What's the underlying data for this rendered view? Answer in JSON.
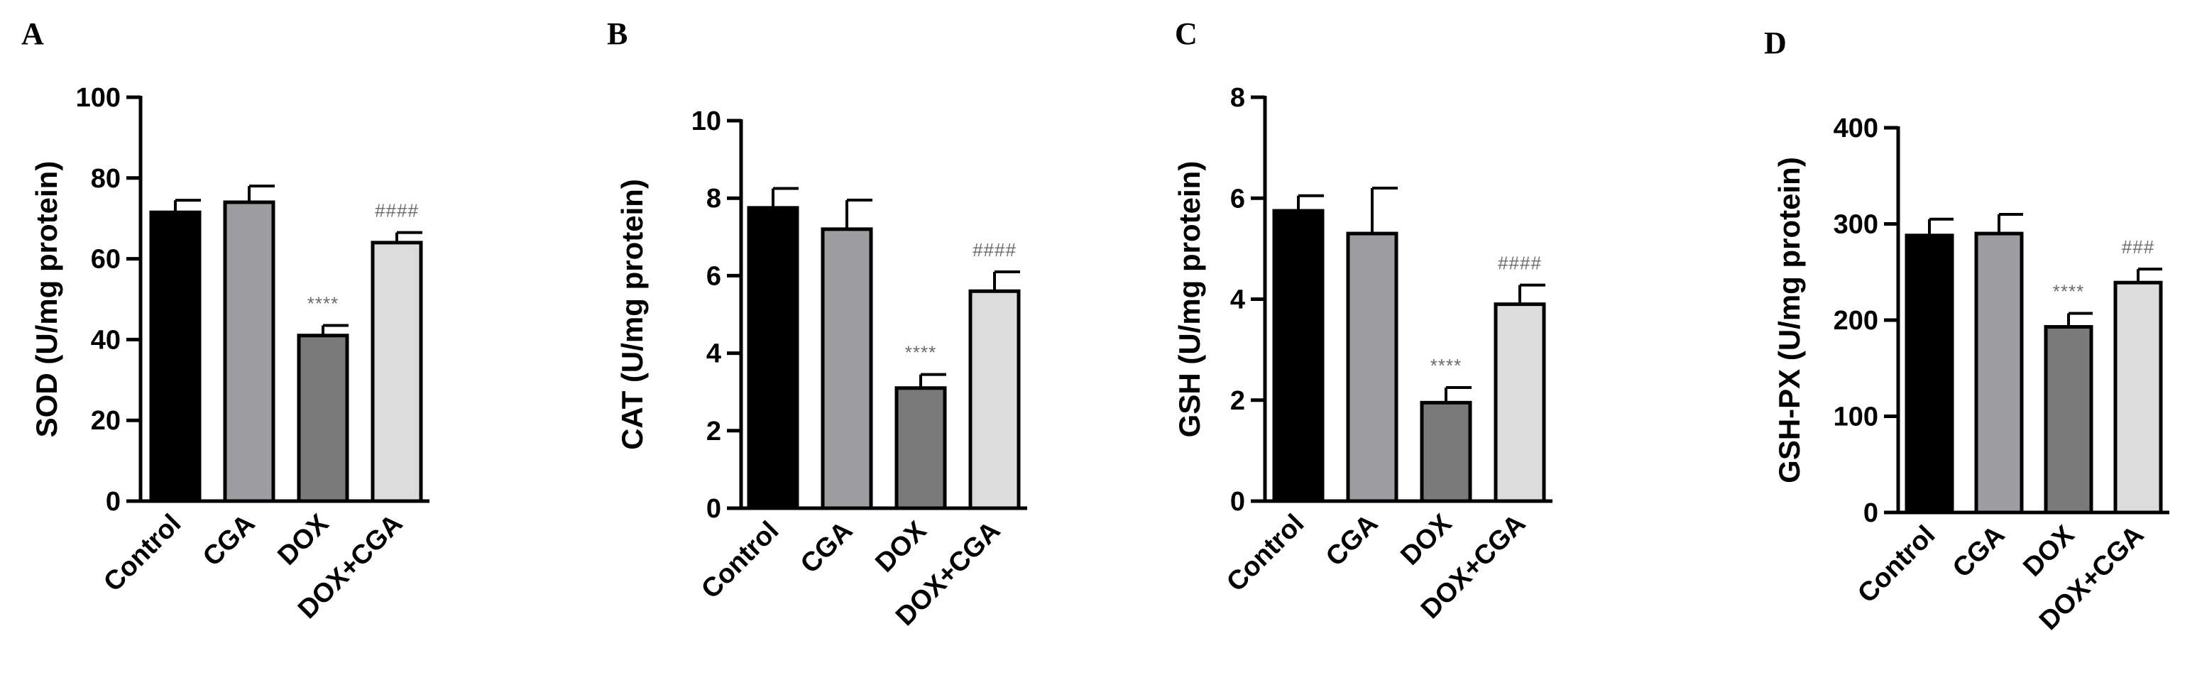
{
  "chart_data": [
    {
      "panel": "A",
      "type": "bar",
      "ylabel": "SOD (U/mg protein)",
      "ylim": [
        0,
        100
      ],
      "yticks": [
        0,
        20,
        40,
        60,
        80,
        100
      ],
      "categories": [
        "Control",
        "CGA",
        "DOX",
        "DOX+CGA"
      ],
      "values": [
        71.5,
        74,
        41,
        64
      ],
      "errors": [
        3,
        4,
        2.5,
        2.5
      ],
      "annotations": [
        "",
        "",
        "****",
        "####"
      ],
      "colors": [
        "#000000",
        "#9e9ea2",
        "#7a7a7a",
        "#dcdcdc"
      ]
    },
    {
      "panel": "B",
      "type": "bar",
      "ylabel": "CAT (U/mg protein)",
      "ylim": [
        0,
        10
      ],
      "yticks": [
        0,
        2,
        4,
        6,
        8,
        10
      ],
      "categories": [
        "Control",
        "CGA",
        "DOX",
        "DOX+CGA"
      ],
      "values": [
        7.75,
        7.2,
        3.1,
        5.6
      ],
      "errors": [
        0.5,
        0.75,
        0.35,
        0.5
      ],
      "annotations": [
        "",
        "",
        "****",
        "####"
      ],
      "colors": [
        "#000000",
        "#9e9ea2",
        "#7a7a7a",
        "#dcdcdc"
      ]
    },
    {
      "panel": "C",
      "type": "bar",
      "ylabel": "GSH (U/mg protein)",
      "ylim": [
        0,
        8
      ],
      "yticks": [
        0,
        2,
        4,
        6,
        8
      ],
      "categories": [
        "Control",
        "CGA",
        "DOX",
        "DOX+CGA"
      ],
      "values": [
        5.75,
        5.3,
        1.95,
        3.9
      ],
      "errors": [
        0.3,
        0.9,
        0.3,
        0.38
      ],
      "annotations": [
        "",
        "",
        "****",
        "####"
      ],
      "colors": [
        "#000000",
        "#9e9ea2",
        "#7a7a7a",
        "#dcdcdc"
      ]
    },
    {
      "panel": "D",
      "type": "bar",
      "ylabel": "GSH-PX (U/mg protein)",
      "ylim": [
        0,
        400
      ],
      "yticks": [
        0,
        100,
        200,
        300,
        400
      ],
      "categories": [
        "Control",
        "CGA",
        "DOX",
        "DOX+CGA"
      ],
      "values": [
        288,
        290,
        193,
        239
      ],
      "errors": [
        17,
        20,
        14,
        14
      ],
      "annotations": [
        "",
        "",
        "****",
        "###"
      ],
      "colors": [
        "#000000",
        "#9e9ea2",
        "#7a7a7a",
        "#dcdcdc"
      ]
    }
  ]
}
